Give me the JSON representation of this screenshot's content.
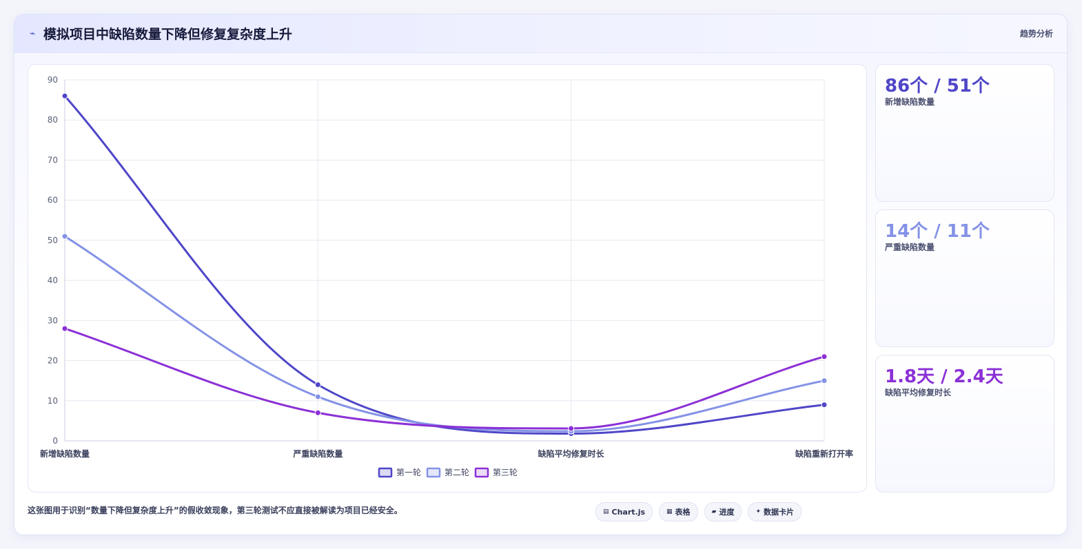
{
  "header": {
    "icon": "trend-line-icon",
    "icon_glyph": "⌁",
    "title": "模拟项目中缺陷数量下降但修复复杂度上升",
    "tag": "趋势分析"
  },
  "stats": [
    {
      "value": "86个 / 51个",
      "label": "新增缺陷数量",
      "color": "#4f46c8"
    },
    {
      "value": "14个 / 11个",
      "label": "严重缺陷数量",
      "color": "#8492e6"
    },
    {
      "value": "1.8天 / 2.4天",
      "label": "缺陷平均修复时长",
      "color": "#8b30d6"
    }
  ],
  "footer": {
    "note": "这张图用于识别“数量下降但复杂度上升”的假收敛现象，第三轮测试不应直接被解读为项目已经安全。",
    "chips": [
      {
        "icon": "chart-icon",
        "glyph": "▤",
        "label": "Chart.js"
      },
      {
        "icon": "table-icon",
        "glyph": "▦",
        "label": "表格"
      },
      {
        "icon": "progress-icon",
        "glyph": "▰",
        "label": "进度"
      },
      {
        "icon": "card-icon",
        "glyph": "✦",
        "label": "数据卡片"
      }
    ]
  },
  "chart_data": {
    "type": "line",
    "categories": [
      "新增缺陷数量",
      "严重缺陷数量",
      "缺陷平均修复时长",
      "缺陷重新打开率"
    ],
    "ylim": [
      0,
      90
    ],
    "yticks": [
      0,
      10,
      20,
      30,
      40,
      50,
      60,
      70,
      80,
      90
    ],
    "grid": true,
    "legend_position": "bottom",
    "smooth": true,
    "series": [
      {
        "name": "第一轮",
        "color": "#4f46c8",
        "fill": "#dcdaf5",
        "values": [
          86,
          14,
          1.8,
          9
        ]
      },
      {
        "name": "第二轮",
        "color": "#8492e6",
        "fill": "#e3e7fa",
        "values": [
          51,
          11,
          2.4,
          15
        ]
      },
      {
        "name": "第三轮",
        "color": "#8b30d6",
        "fill": "#ecdcf8",
        "values": [
          28,
          7,
          3.1,
          21
        ]
      }
    ]
  }
}
